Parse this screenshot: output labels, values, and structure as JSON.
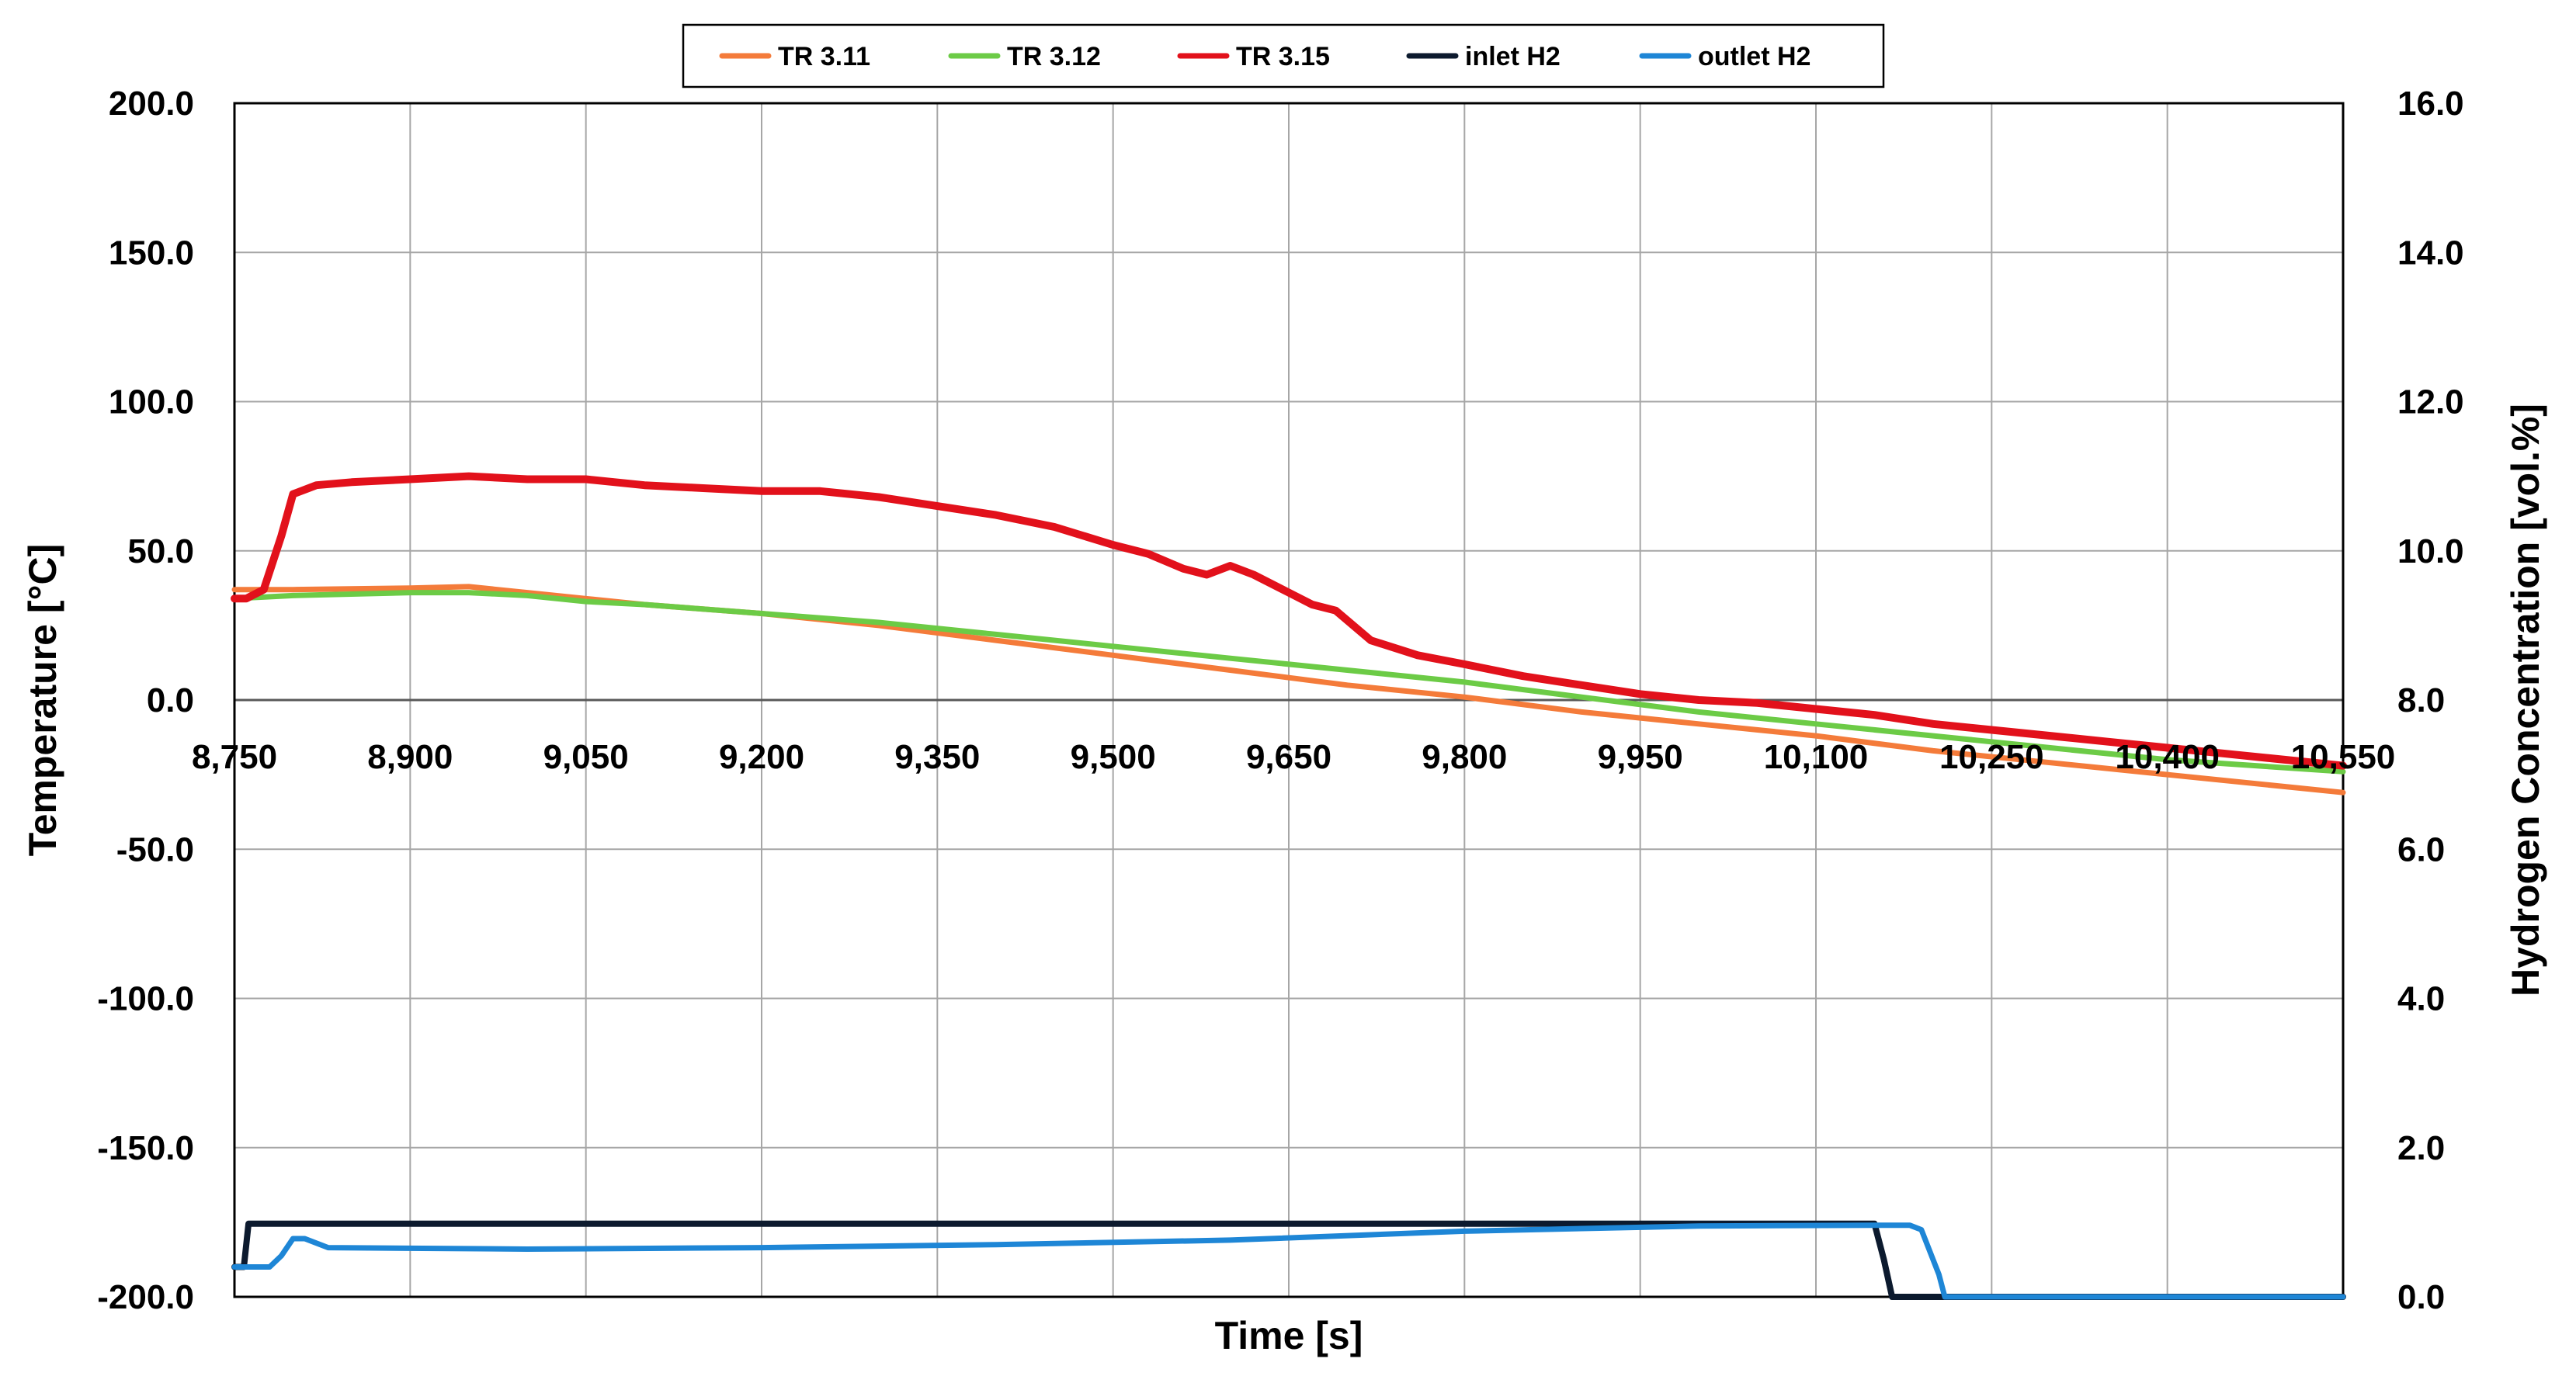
{
  "chart_data": {
    "type": "line",
    "xlabel": "Time [s]",
    "ylabel": "Temperature [°C]",
    "y2label": "Hydrogen Concentration [vol.%]",
    "xlim": [
      8750,
      10550
    ],
    "ylim": [
      -200,
      200
    ],
    "y2lim": [
      0,
      16
    ],
    "x_ticks": [
      "8,750",
      "8,900",
      "9,050",
      "9,200",
      "9,350",
      "9,500",
      "9,650",
      "9,800",
      "9,950",
      "10,100",
      "10,250",
      "10,400",
      "10,550"
    ],
    "y_ticks": [
      "200.0",
      "150.0",
      "100.0",
      "50.0",
      "0.0",
      "-50.0",
      "-100.0",
      "-150.0",
      "-200.0"
    ],
    "y2_ticks": [
      "16.0",
      "14.0",
      "12.0",
      "10.0",
      "8.0",
      "6.0",
      "4.0",
      "2.0",
      "0.0"
    ],
    "grid": true,
    "legend_position": "top",
    "series": [
      {
        "name": "TR 3.11",
        "color": "#F47B3A",
        "axis": "left",
        "x": [
          8750,
          8800,
          8900,
          8950,
          9000,
          9050,
          9100,
          9200,
          9300,
          9400,
          9500,
          9600,
          9700,
          9800,
          9900,
          10000,
          10100,
          10200,
          10300,
          10400,
          10550
        ],
        "y": [
          37,
          37,
          37.5,
          38,
          36,
          34,
          32,
          29,
          25,
          20,
          15,
          10,
          5,
          1,
          -4,
          -8,
          -12,
          -17,
          -21,
          -25,
          -31
        ]
      },
      {
        "name": "TR 3.12",
        "color": "#6CCB46",
        "axis": "left",
        "x": [
          8750,
          8800,
          8900,
          8950,
          9000,
          9050,
          9100,
          9200,
          9300,
          9400,
          9500,
          9600,
          9700,
          9800,
          9900,
          10000,
          10100,
          10200,
          10300,
          10400,
          10550
        ],
        "y": [
          34,
          35,
          36,
          36,
          35,
          33,
          32,
          29,
          26,
          22,
          18,
          14,
          10,
          6,
          1,
          -4,
          -8,
          -12,
          -16,
          -20,
          -24
        ]
      },
      {
        "name": "TR 3.15",
        "color": "#E2111B",
        "axis": "left",
        "x": [
          8750,
          8760,
          8775,
          8790,
          8800,
          8820,
          8850,
          8900,
          8950,
          9000,
          9050,
          9100,
          9150,
          9200,
          9250,
          9300,
          9350,
          9400,
          9450,
          9500,
          9530,
          9560,
          9580,
          9600,
          9620,
          9650,
          9670,
          9690,
          9720,
          9760,
          9800,
          9850,
          9900,
          9950,
          10000,
          10050,
          10100,
          10150,
          10200,
          10250,
          10300,
          10350,
          10400,
          10450,
          10500,
          10550
        ],
        "y": [
          34,
          34,
          37,
          55,
          69,
          72,
          73,
          74,
          75,
          74,
          74,
          72,
          71,
          70,
          70,
          68,
          65,
          62,
          58,
          52,
          49,
          44,
          42,
          45,
          42,
          36,
          32,
          30,
          20,
          15,
          12,
          8,
          5,
          2,
          0,
          -1,
          -3,
          -5,
          -8,
          -10,
          -12,
          -14,
          -16,
          -18,
          -20,
          -22
        ]
      },
      {
        "name": "inlet H2",
        "color": "#0C1A2E",
        "axis": "right",
        "x": [
          8750,
          8758,
          8762,
          10150,
          10158,
          10165,
          10550
        ],
        "y": [
          0.4,
          0.4,
          0.98,
          0.98,
          0.5,
          0.0,
          0.0
        ]
      },
      {
        "name": "outlet H2",
        "color": "#1E86D6",
        "axis": "right",
        "x": [
          8750,
          8780,
          8790,
          8800,
          8810,
          8830,
          9000,
          9200,
          9400,
          9600,
          9800,
          10000,
          10150,
          10180,
          10190,
          10205,
          10210,
          10550
        ],
        "y": [
          0.4,
          0.4,
          0.55,
          0.78,
          0.78,
          0.66,
          0.64,
          0.66,
          0.7,
          0.76,
          0.88,
          0.95,
          0.96,
          0.96,
          0.9,
          0.3,
          0.0,
          0.0
        ]
      }
    ]
  }
}
